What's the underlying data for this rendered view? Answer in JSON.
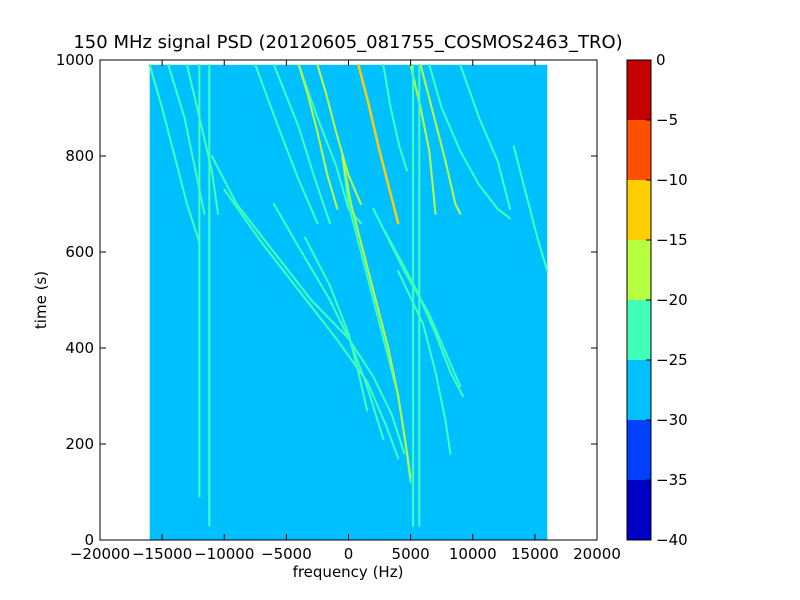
{
  "chart_data": {
    "type": "heatmap",
    "title": "150 MHz signal PSD (20120605_081755_COSMOS2463_TRO)",
    "xlabel": "frequency (Hz)",
    "ylabel": "time (s)",
    "xlim": [
      -20000,
      20000
    ],
    "ylim": [
      0,
      1000
    ],
    "x_ticks": [
      -20000,
      -15000,
      -10000,
      -5000,
      0,
      5000,
      10000,
      15000,
      20000
    ],
    "x_tick_labels": [
      "−20000",
      "−15000",
      "−10000",
      "−5000",
      "0",
      "5000",
      "10000",
      "15000",
      "20000"
    ],
    "y_ticks": [
      0,
      200,
      400,
      600,
      800,
      1000
    ],
    "y_tick_labels": [
      "0",
      "200",
      "400",
      "600",
      "800",
      "1000"
    ],
    "data_extent": {
      "x": [
        -16000,
        16000
      ],
      "y": [
        0,
        990
      ]
    },
    "background_level": -27.5,
    "colorbar": {
      "levels": [
        -40,
        -35,
        -30,
        -25,
        -20,
        -15,
        -10,
        -5,
        0
      ],
      "tick_labels": [
        "−40",
        "−35",
        "−30",
        "−25",
        "−20",
        "−15",
        "−10",
        "−5",
        "0"
      ],
      "colors": [
        "#0000c4",
        "#0040ff",
        "#00c0ff",
        "#40ffb8",
        "#b8ff40",
        "#ffd000",
        "#ff5000",
        "#c40000"
      ]
    },
    "traces": [
      {
        "level": -22.5,
        "points": [
          [
            -16000,
            990
          ],
          [
            -15000,
            900
          ],
          [
            -14000,
            800
          ],
          [
            -13000,
            700
          ],
          [
            -12000,
            620
          ]
        ]
      },
      {
        "level": -22.5,
        "points": [
          [
            -14500,
            990
          ],
          [
            -13200,
            880
          ],
          [
            -11600,
            680
          ]
        ]
      },
      {
        "level": -22.5,
        "points": [
          [
            -13000,
            990
          ],
          [
            -12000,
            880
          ],
          [
            -11000,
            770
          ],
          [
            -10500,
            680
          ]
        ]
      },
      {
        "level": -22.5,
        "points": [
          [
            -7500,
            990
          ],
          [
            -5500,
            850
          ],
          [
            -4000,
            750
          ],
          [
            -2500,
            660
          ]
        ]
      },
      {
        "level": -22.5,
        "points": [
          [
            -6000,
            990
          ],
          [
            -4000,
            860
          ],
          [
            -2800,
            760
          ],
          [
            -1500,
            660
          ]
        ]
      },
      {
        "level": -22.5,
        "points": [
          [
            -4000,
            990
          ],
          [
            -2500,
            880
          ],
          [
            -1000,
            780
          ],
          [
            0,
            690
          ],
          [
            1000,
            660
          ]
        ]
      },
      {
        "level": -17.5,
        "points": [
          [
            -4000,
            990
          ],
          [
            -3300,
            930
          ],
          [
            -2500,
            850
          ],
          [
            -1700,
            760
          ],
          [
            -900,
            690
          ]
        ]
      },
      {
        "level": -17.5,
        "points": [
          [
            -2500,
            990
          ],
          [
            -1800,
            930
          ],
          [
            -1000,
            850
          ],
          [
            0,
            760
          ],
          [
            1000,
            700
          ]
        ]
      },
      {
        "level": -12.5,
        "points": [
          [
            800,
            990
          ],
          [
            1600,
            910
          ],
          [
            2500,
            810
          ],
          [
            3300,
            730
          ],
          [
            4000,
            660
          ]
        ]
      },
      {
        "level": -22.5,
        "points": [
          [
            -500,
            800
          ],
          [
            0,
            700
          ],
          [
            1000,
            600
          ],
          [
            2000,
            500
          ],
          [
            3000,
            400
          ],
          [
            4000,
            300
          ],
          [
            4600,
            200
          ],
          [
            5000,
            120
          ]
        ]
      },
      {
        "level": -17.5,
        "points": [
          [
            -500,
            800
          ],
          [
            200,
            700
          ],
          [
            1200,
            600
          ],
          [
            2200,
            500
          ],
          [
            3200,
            400
          ],
          [
            4000,
            300
          ],
          [
            4600,
            200
          ],
          [
            5000,
            130
          ]
        ]
      },
      {
        "level": -22.5,
        "points": [
          [
            2800,
            990
          ],
          [
            3400,
            900
          ],
          [
            4100,
            820
          ],
          [
            4700,
            770
          ]
        ]
      },
      {
        "level": -17.5,
        "points": [
          [
            5000,
            990
          ],
          [
            5800,
            900
          ],
          [
            6500,
            810
          ],
          [
            7000,
            680
          ]
        ]
      },
      {
        "level": -17.5,
        "points": [
          [
            5800,
            990
          ],
          [
            6800,
            890
          ],
          [
            7800,
            790
          ],
          [
            8600,
            700
          ],
          [
            9000,
            680
          ]
        ]
      },
      {
        "level": -22.5,
        "points": [
          [
            6500,
            990
          ],
          [
            7500,
            900
          ],
          [
            9000,
            810
          ],
          [
            10500,
            740
          ],
          [
            12000,
            690
          ],
          [
            13000,
            670
          ]
        ]
      },
      {
        "level": -22.5,
        "points": [
          [
            9000,
            990
          ],
          [
            10500,
            880
          ],
          [
            12000,
            790
          ],
          [
            13000,
            690
          ]
        ]
      },
      {
        "level": -22.5,
        "points": [
          [
            13300,
            820
          ],
          [
            14200,
            730
          ],
          [
            15200,
            630
          ],
          [
            16000,
            560
          ]
        ]
      },
      {
        "level": -22.5,
        "points": [
          [
            -11000,
            800
          ],
          [
            -9000,
            700
          ],
          [
            -6000,
            600
          ],
          [
            -3000,
            500
          ],
          [
            0,
            420
          ],
          [
            2000,
            340
          ],
          [
            3500,
            260
          ],
          [
            4500,
            180
          ]
        ]
      },
      {
        "level": -22.5,
        "points": [
          [
            -10000,
            730
          ],
          [
            -7000,
            620
          ],
          [
            -4000,
            520
          ],
          [
            -1000,
            420
          ],
          [
            1500,
            330
          ],
          [
            3000,
            240
          ],
          [
            4000,
            170
          ]
        ]
      },
      {
        "level": -22.5,
        "points": [
          [
            -6000,
            700
          ],
          [
            -4000,
            610
          ],
          [
            -1500,
            500
          ],
          [
            200,
            410
          ],
          [
            1500,
            320
          ],
          [
            2800,
            210
          ]
        ]
      },
      {
        "level": -22.5,
        "points": [
          [
            -3500,
            630
          ],
          [
            -1500,
            530
          ],
          [
            0,
            430
          ],
          [
            800,
            350
          ],
          [
            1500,
            270
          ]
        ]
      },
      {
        "level": -22.5,
        "points": [
          [
            2000,
            690
          ],
          [
            4500,
            560
          ],
          [
            6500,
            470
          ],
          [
            8000,
            380
          ],
          [
            9000,
            320
          ]
        ]
      },
      {
        "level": -22.5,
        "points": [
          [
            3000,
            640
          ],
          [
            5500,
            520
          ],
          [
            7000,
            430
          ],
          [
            8200,
            350
          ],
          [
            9200,
            300
          ]
        ]
      },
      {
        "level": -22.5,
        "points": [
          [
            4000,
            560
          ],
          [
            6000,
            450
          ],
          [
            7000,
            350
          ],
          [
            7800,
            250
          ],
          [
            8200,
            180
          ]
        ]
      },
      {
        "level": -22.5,
        "points": [
          [
            -12000,
            990
          ],
          [
            -12000,
            90
          ]
        ]
      },
      {
        "level": -22.5,
        "points": [
          [
            -11200,
            990
          ],
          [
            -11200,
            30
          ]
        ]
      },
      {
        "level": -22.5,
        "points": [
          [
            5200,
            990
          ],
          [
            5200,
            30
          ]
        ]
      },
      {
        "level": -22.5,
        "points": [
          [
            5700,
            990
          ],
          [
            5700,
            30
          ]
        ]
      }
    ]
  }
}
